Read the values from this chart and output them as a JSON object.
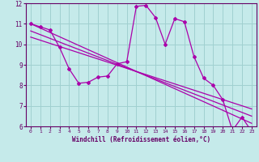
{
  "xlabel": "Windchill (Refroidissement éolien,°C)",
  "xlim": [
    -0.5,
    23.5
  ],
  "ylim": [
    6,
    12
  ],
  "yticks": [
    6,
    7,
    8,
    9,
    10,
    11,
    12
  ],
  "xticks": [
    0,
    1,
    2,
    3,
    4,
    5,
    6,
    7,
    8,
    9,
    10,
    11,
    12,
    13,
    14,
    15,
    16,
    17,
    18,
    19,
    20,
    21,
    22,
    23
  ],
  "bg_color": "#c5eaea",
  "grid_color": "#a0d0d0",
  "line_color": "#aa00aa",
  "spine_color": "#660066",
  "main_data_x": [
    0,
    1,
    2,
    3,
    4,
    5,
    6,
    7,
    8,
    9,
    10,
    11,
    12,
    13,
    14,
    15,
    16,
    17,
    18,
    19,
    20,
    21,
    22,
    23
  ],
  "main_data_y": [
    11.0,
    10.85,
    10.7,
    9.85,
    8.8,
    8.1,
    8.15,
    8.4,
    8.45,
    9.05,
    9.15,
    11.85,
    11.9,
    11.3,
    10.0,
    11.25,
    11.1,
    9.4,
    8.35,
    8.0,
    7.3,
    5.8,
    6.45,
    5.75
  ],
  "trend1_x": [
    0,
    23
  ],
  "trend1_y": [
    11.0,
    6.15
  ],
  "trend2_x": [
    0,
    23
  ],
  "trend2_y": [
    10.65,
    6.5
  ],
  "trend3_x": [
    0,
    23
  ],
  "trend3_y": [
    10.35,
    6.85
  ]
}
